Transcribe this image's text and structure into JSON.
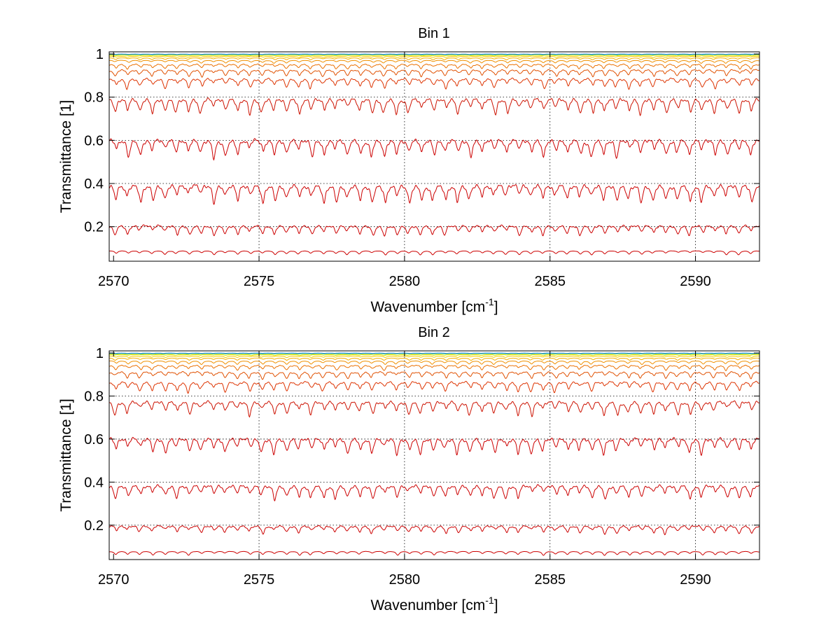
{
  "chart_data": [
    {
      "type": "line",
      "title": "Bin 1",
      "xlabel": "Wavenumber [cm",
      "xlabel_sup": "-1",
      "xlabel_end": "]",
      "ylabel": "Transmittance [1]",
      "xlim": [
        2569.85,
        2592.2
      ],
      "ylim": [
        0.04,
        1.01
      ],
      "xticks": [
        2570,
        2575,
        2580,
        2585,
        2590
      ],
      "yticks": [
        0.2,
        0.4,
        0.6,
        0.8,
        1
      ],
      "xtick_labels": [
        "2570",
        "2575",
        "2580",
        "2585",
        "2590"
      ],
      "ytick_labels": [
        "0.2",
        "0.4",
        "0.6",
        "0.8",
        "1"
      ],
      "grid": true,
      "line_spacing_cm1": 0.42,
      "series": [
        {
          "color": "#cc0000",
          "baseline": 0.09,
          "dip": 0.02
        },
        {
          "color": "#cc0000",
          "baseline": 0.21,
          "dip": 0.05
        },
        {
          "color": "#cc0000",
          "baseline": 0.4,
          "dip": 0.09
        },
        {
          "color": "#cc0000",
          "baseline": 0.61,
          "dip": 0.09
        },
        {
          "color": "#cc1100",
          "baseline": 0.8,
          "dip": 0.08
        },
        {
          "color": "#dd3300",
          "baseline": 0.89,
          "dip": 0.05
        },
        {
          "color": "#e05000",
          "baseline": 0.93,
          "dip": 0.035
        },
        {
          "color": "#ea7000",
          "baseline": 0.955,
          "dip": 0.025
        },
        {
          "color": "#f09000",
          "baseline": 0.972,
          "dip": 0.015
        },
        {
          "color": "#f5b000",
          "baseline": 0.983,
          "dip": 0.01
        },
        {
          "color": "#f7d000",
          "baseline": 0.99,
          "dip": 0.007
        },
        {
          "color": "#e0e000",
          "baseline": 0.995,
          "dip": 0.004
        },
        {
          "color": "#90e040",
          "baseline": 0.998,
          "dip": 0.003
        },
        {
          "color": "#30d0c0",
          "baseline": 0.999,
          "dip": 0.002
        },
        {
          "color": "#2080e0",
          "baseline": 1.0,
          "dip": 0.002
        }
      ]
    },
    {
      "type": "line",
      "title": "Bin 2",
      "xlabel": "Wavenumber [cm",
      "xlabel_sup": "-1",
      "xlabel_end": "]",
      "ylabel": "Transmittance [1]",
      "xlim": [
        2569.85,
        2592.2
      ],
      "ylim": [
        0.04,
        1.01
      ],
      "xticks": [
        2570,
        2575,
        2580,
        2585,
        2590
      ],
      "yticks": [
        0.2,
        0.4,
        0.6,
        0.8,
        1
      ],
      "xtick_labels": [
        "2570",
        "2575",
        "2580",
        "2585",
        "2590"
      ],
      "ytick_labels": [
        "0.2",
        "0.4",
        "0.6",
        "0.8",
        "1"
      ],
      "grid": true,
      "line_spacing_cm1": 0.42,
      "series": [
        {
          "color": "#cc0000",
          "baseline": 0.08,
          "dip": 0.02
        },
        {
          "color": "#cc0000",
          "baseline": 0.2,
          "dip": 0.04
        },
        {
          "color": "#cc0000",
          "baseline": 0.39,
          "dip": 0.07
        },
        {
          "color": "#cc0000",
          "baseline": 0.61,
          "dip": 0.08
        },
        {
          "color": "#cc1100",
          "baseline": 0.78,
          "dip": 0.07
        },
        {
          "color": "#dd3300",
          "baseline": 0.87,
          "dip": 0.05
        },
        {
          "color": "#e05000",
          "baseline": 0.915,
          "dip": 0.035
        },
        {
          "color": "#ea7000",
          "baseline": 0.945,
          "dip": 0.025
        },
        {
          "color": "#f09000",
          "baseline": 0.965,
          "dip": 0.018
        },
        {
          "color": "#f5b000",
          "baseline": 0.978,
          "dip": 0.012
        },
        {
          "color": "#f7d000",
          "baseline": 0.987,
          "dip": 0.008
        },
        {
          "color": "#e0e000",
          "baseline": 0.993,
          "dip": 0.005
        },
        {
          "color": "#90e040",
          "baseline": 0.997,
          "dip": 0.003
        },
        {
          "color": "#30d0c0",
          "baseline": 0.999,
          "dip": 0.002
        },
        {
          "color": "#2080e0",
          "baseline": 1.0,
          "dip": 0.002
        }
      ]
    }
  ]
}
